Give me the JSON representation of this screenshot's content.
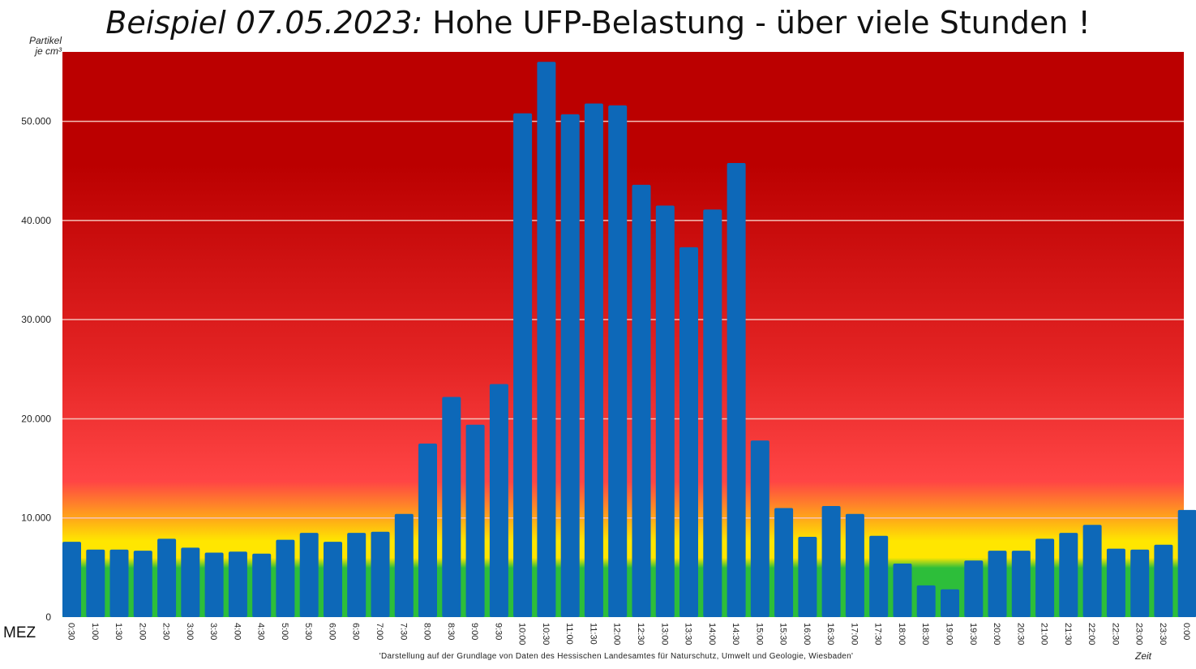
{
  "header": {
    "title_italic": "Beispiel 07.05.2023:",
    "title_rest": " Hohe UFP-Belastung - über viele Stunden !"
  },
  "axes": {
    "ylabel_line1": "Partikel",
    "ylabel_line2": "je cm³",
    "xlabel": "Zeit",
    "timezone_label": "MEZ"
  },
  "footer": {
    "source": "'Darstellung auf der Grundlage von Daten des Hessischen Landesamtes für Naturschutz, Umwelt und Geologie, Wiesbaden'"
  },
  "colors": {
    "bar": "#0d68b8",
    "grid": "#f4c0b8",
    "green": "#2dbe3a",
    "yellow": "#ffe600",
    "orange": "#ff9f1c",
    "red_light": "#ff4545",
    "red_mid": "#e42424",
    "red_dark": "#bb0000"
  },
  "chart_data": {
    "type": "bar",
    "ylim": [
      0,
      57000
    ],
    "yticks": [
      0,
      10000,
      20000,
      30000,
      40000,
      50000
    ],
    "ytick_labels": [
      "0",
      "10.000",
      "20.000",
      "30.000",
      "40.000",
      "50.000"
    ],
    "grid": true,
    "categories": [
      "0:30",
      "1:00",
      "1:30",
      "2:00",
      "2:30",
      "3:00",
      "3:30",
      "4:00",
      "4:30",
      "5:00",
      "5:30",
      "6:00",
      "6:30",
      "7:00",
      "7:30",
      "8:00",
      "8:30",
      "9:00",
      "9:30",
      "10:00",
      "10:30",
      "11:00",
      "11:30",
      "12:00",
      "12:30",
      "13:00",
      "13:30",
      "14:00",
      "14:30",
      "15:00",
      "15:30",
      "16:00",
      "16:30",
      "17:00",
      "17:30",
      "18:00",
      "18:30",
      "19:00",
      "19:30",
      "20:00",
      "20:30",
      "21:00",
      "21:30",
      "22:00",
      "22:30",
      "23:00",
      "23:30",
      "0:00"
    ],
    "values": [
      7600,
      6800,
      6800,
      6700,
      7900,
      7000,
      6500,
      6600,
      6400,
      7800,
      8500,
      7600,
      8500,
      8600,
      10400,
      17500,
      22200,
      19400,
      23500,
      50800,
      56000,
      50700,
      51800,
      51600,
      43600,
      41500,
      37300,
      41100,
      45800,
      17800,
      11000,
      8100,
      11200,
      10400,
      8200,
      5400,
      3200,
      2800,
      5700,
      6700,
      6700,
      7900,
      8500,
      9300,
      6900,
      6800,
      7300,
      10800
    ]
  }
}
